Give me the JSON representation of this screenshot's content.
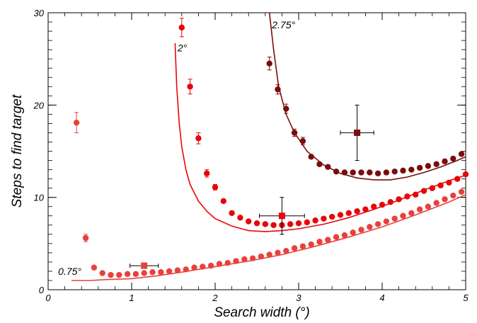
{
  "chart_data": {
    "type": "scatter",
    "title": "",
    "xlabel": "Search width (°)",
    "ylabel": "Steps to find target",
    "xlim": [
      0,
      5
    ],
    "ylim": [
      0,
      30
    ],
    "x_ticks": [
      0,
      1,
      2,
      3,
      4,
      5
    ],
    "y_ticks": [
      0,
      10,
      20,
      30
    ],
    "grid": false,
    "series": [
      {
        "name": "0.75°",
        "color": "#e8413c",
        "points": [
          [
            0.34,
            18.1
          ],
          [
            0.45,
            5.6
          ],
          [
            0.55,
            2.4
          ],
          [
            0.65,
            1.8
          ],
          [
            0.75,
            1.6
          ],
          [
            0.85,
            1.6
          ],
          [
            0.95,
            1.7
          ],
          [
            1.05,
            1.7
          ],
          [
            1.15,
            1.8
          ],
          [
            1.25,
            1.9
          ],
          [
            1.35,
            1.9
          ],
          [
            1.45,
            2.0
          ],
          [
            1.55,
            2.1
          ],
          [
            1.65,
            2.2
          ],
          [
            1.75,
            2.4
          ],
          [
            1.85,
            2.5
          ],
          [
            1.95,
            2.6
          ],
          [
            2.05,
            2.8
          ],
          [
            2.15,
            2.9
          ],
          [
            2.25,
            3.1
          ],
          [
            2.35,
            3.3
          ],
          [
            2.45,
            3.4
          ],
          [
            2.55,
            3.6
          ],
          [
            2.65,
            3.8
          ],
          [
            2.75,
            4.0
          ],
          [
            2.85,
            4.2
          ],
          [
            2.95,
            4.5
          ],
          [
            3.05,
            4.7
          ],
          [
            3.15,
            4.9
          ],
          [
            3.25,
            5.2
          ],
          [
            3.35,
            5.4
          ],
          [
            3.45,
            5.7
          ],
          [
            3.55,
            5.9
          ],
          [
            3.65,
            6.2
          ],
          [
            3.75,
            6.5
          ],
          [
            3.85,
            6.8
          ],
          [
            3.95,
            7.1
          ],
          [
            4.05,
            7.4
          ],
          [
            4.15,
            7.7
          ],
          [
            4.25,
            8.0
          ],
          [
            4.35,
            8.3
          ],
          [
            4.45,
            8.7
          ],
          [
            4.55,
            9.0
          ],
          [
            4.65,
            9.4
          ],
          [
            4.75,
            9.8
          ],
          [
            4.85,
            10.2
          ],
          [
            4.95,
            10.6
          ]
        ],
        "errors": [
          1.1,
          0.4
        ],
        "model_curve": [
          [
            0.28,
            1.0
          ],
          [
            0.5,
            1.0
          ],
          [
            0.7,
            1.1
          ],
          [
            1.0,
            1.2
          ],
          [
            1.3,
            1.5
          ],
          [
            1.6,
            1.9
          ],
          [
            2.0,
            2.5
          ],
          [
            2.4,
            3.1
          ],
          [
            2.8,
            3.8
          ],
          [
            3.2,
            4.7
          ],
          [
            3.6,
            5.7
          ],
          [
            4.0,
            6.8
          ],
          [
            4.4,
            8.1
          ],
          [
            4.8,
            9.5
          ],
          [
            5.0,
            10.3
          ]
        ],
        "model_point": {
          "x": 1.15,
          "y": 2.6,
          "xerr": 0.17,
          "yerr": 0
        }
      },
      {
        "name": "2°",
        "color": "#e8050a",
        "points": [
          [
            1.6,
            28.4
          ],
          [
            1.7,
            22.0
          ],
          [
            1.8,
            16.4
          ],
          [
            1.9,
            12.6
          ],
          [
            2.0,
            11.1
          ],
          [
            2.1,
            9.6
          ],
          [
            2.2,
            8.3
          ],
          [
            2.3,
            7.8
          ],
          [
            2.4,
            7.4
          ],
          [
            2.5,
            7.2
          ],
          [
            2.6,
            7.1
          ],
          [
            2.7,
            7.0
          ],
          [
            2.8,
            7.0
          ],
          [
            2.9,
            7.1
          ],
          [
            3.0,
            7.2
          ],
          [
            3.1,
            7.3
          ],
          [
            3.2,
            7.5
          ],
          [
            3.3,
            7.7
          ],
          [
            3.4,
            7.9
          ],
          [
            3.5,
            8.1
          ],
          [
            3.6,
            8.3
          ],
          [
            3.7,
            8.5
          ],
          [
            3.8,
            8.7
          ],
          [
            3.9,
            9.0
          ],
          [
            4.0,
            9.2
          ],
          [
            4.1,
            9.5
          ],
          [
            4.2,
            9.8
          ],
          [
            4.3,
            10.1
          ],
          [
            4.4,
            10.3
          ],
          [
            4.5,
            10.7
          ],
          [
            4.6,
            11.0
          ],
          [
            4.7,
            11.3
          ],
          [
            4.8,
            11.6
          ],
          [
            4.9,
            12.0
          ],
          [
            5.0,
            12.5
          ]
        ],
        "errors": [
          1.0,
          0.8,
          0.6,
          0.4,
          0.3
        ],
        "model_curve": [
          [
            1.52,
            26.7
          ],
          [
            1.54,
            22.0
          ],
          [
            1.57,
            18.0
          ],
          [
            1.6,
            15.5
          ],
          [
            1.65,
            13.0
          ],
          [
            1.7,
            11.4
          ],
          [
            1.8,
            9.6
          ],
          [
            1.9,
            8.5
          ],
          [
            2.0,
            7.7
          ],
          [
            2.2,
            6.9
          ],
          [
            2.4,
            6.4
          ],
          [
            2.6,
            6.3
          ],
          [
            2.8,
            6.4
          ],
          [
            3.0,
            6.6
          ],
          [
            3.3,
            7.1
          ],
          [
            3.6,
            7.8
          ],
          [
            3.9,
            8.7
          ],
          [
            4.2,
            9.7
          ],
          [
            4.5,
            10.8
          ],
          [
            4.8,
            11.8
          ],
          [
            5.0,
            12.4
          ]
        ],
        "model_point": {
          "x": 2.8,
          "y": 8.0,
          "xerr": 0.27,
          "yerr": 2.0
        }
      },
      {
        "name": "2.75°",
        "color": "#7a0c0c",
        "points": [
          [
            2.65,
            24.5
          ],
          [
            2.75,
            21.7
          ],
          [
            2.85,
            19.6
          ],
          [
            2.95,
            17.0
          ],
          [
            3.05,
            16.1
          ],
          [
            3.15,
            14.4
          ],
          [
            3.25,
            13.6
          ],
          [
            3.35,
            13.3
          ],
          [
            3.45,
            12.8
          ],
          [
            3.55,
            12.7
          ],
          [
            3.65,
            12.7
          ],
          [
            3.75,
            12.7
          ],
          [
            3.85,
            12.7
          ],
          [
            3.95,
            12.6
          ],
          [
            4.05,
            12.7
          ],
          [
            4.15,
            12.8
          ],
          [
            4.25,
            12.9
          ],
          [
            4.35,
            13.0
          ],
          [
            4.45,
            13.2
          ],
          [
            4.55,
            13.4
          ],
          [
            4.65,
            13.6
          ],
          [
            4.75,
            13.9
          ],
          [
            4.85,
            14.2
          ],
          [
            4.95,
            14.7
          ]
        ],
        "errors": [
          0.7,
          0.5,
          0.5,
          0.4,
          0.4
        ],
        "model_curve": [
          [
            2.65,
            30.0
          ],
          [
            2.7,
            26.0
          ],
          [
            2.76,
            22.0
          ],
          [
            2.85,
            19.0
          ],
          [
            2.95,
            17.0
          ],
          [
            3.1,
            15.0
          ],
          [
            3.3,
            13.5
          ],
          [
            3.5,
            12.6
          ],
          [
            3.7,
            12.1
          ],
          [
            3.9,
            11.9
          ],
          [
            4.1,
            11.9
          ],
          [
            4.3,
            12.2
          ],
          [
            4.5,
            12.7
          ],
          [
            4.7,
            13.3
          ],
          [
            4.9,
            14.0
          ],
          [
            5.0,
            14.4
          ]
        ],
        "model_point": {
          "x": 3.7,
          "y": 17.0,
          "xerr": 0.2,
          "yerr": 3.0
        }
      }
    ]
  }
}
